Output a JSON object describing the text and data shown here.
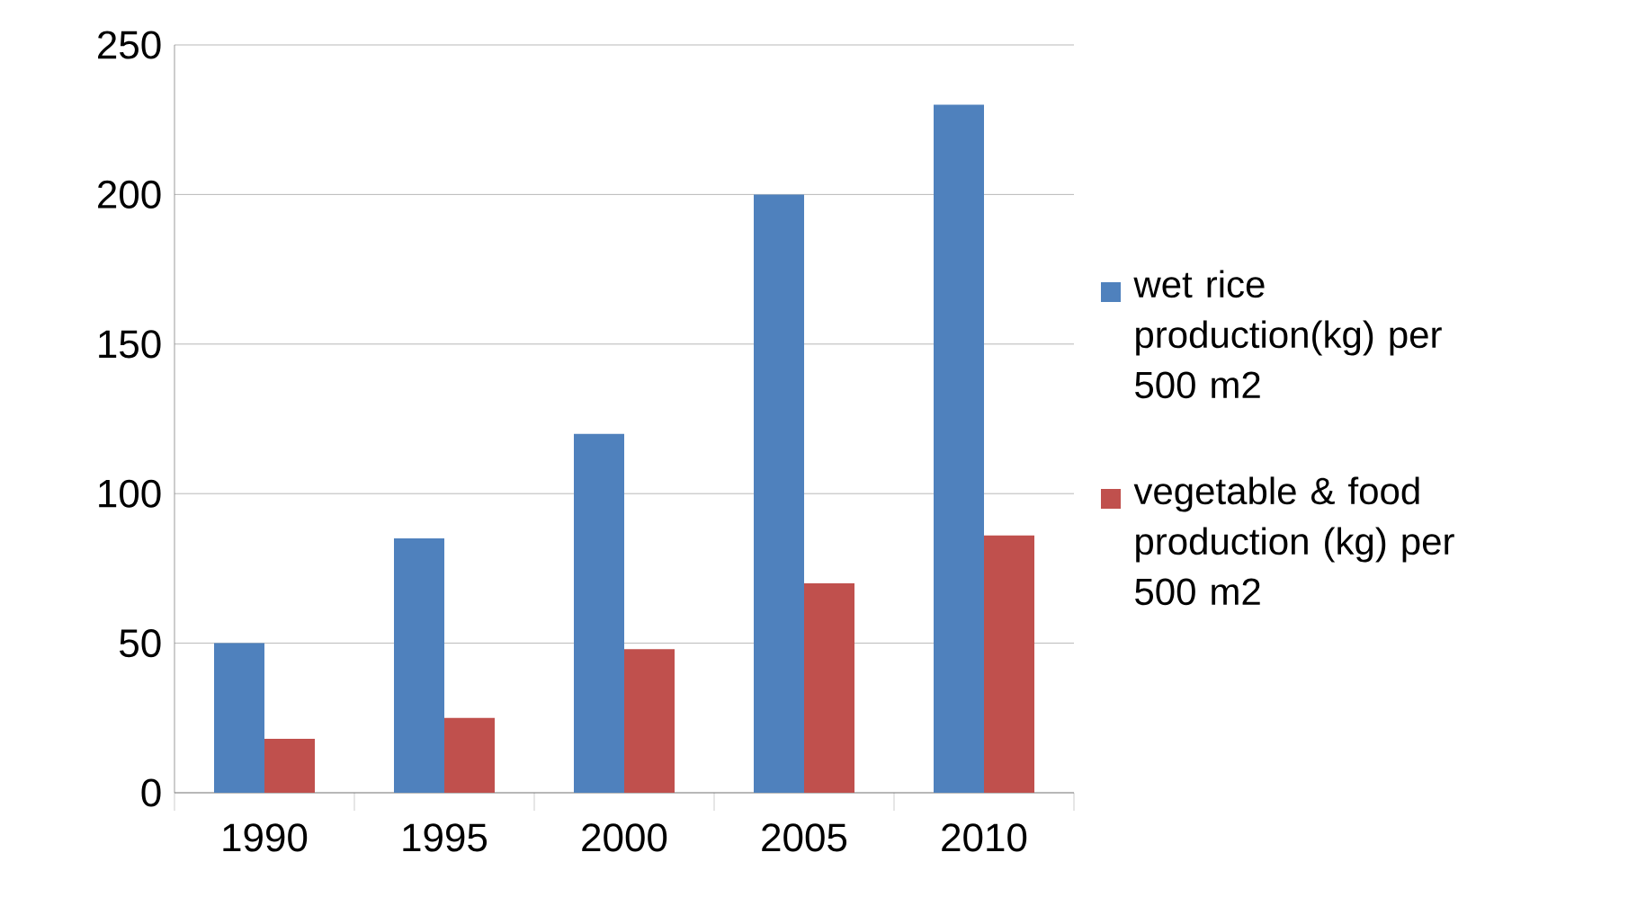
{
  "chart_data": {
    "type": "bar",
    "categories": [
      "1990",
      "1995",
      "2000",
      "2005",
      "2010"
    ],
    "series": [
      {
        "name": "wet rice production(kg) per 500 m2",
        "color": "#4f81bd",
        "values": [
          50,
          85,
          120,
          200,
          230
        ]
      },
      {
        "name": "vegetable & food production (kg) per 500 m2",
        "color": "#c0504d",
        "values": [
          18,
          25,
          48,
          70,
          86
        ]
      }
    ],
    "ylim": [
      0,
      250
    ],
    "yticks": [
      0,
      50,
      100,
      150,
      200,
      250
    ],
    "grid": "y",
    "legend": "right"
  }
}
